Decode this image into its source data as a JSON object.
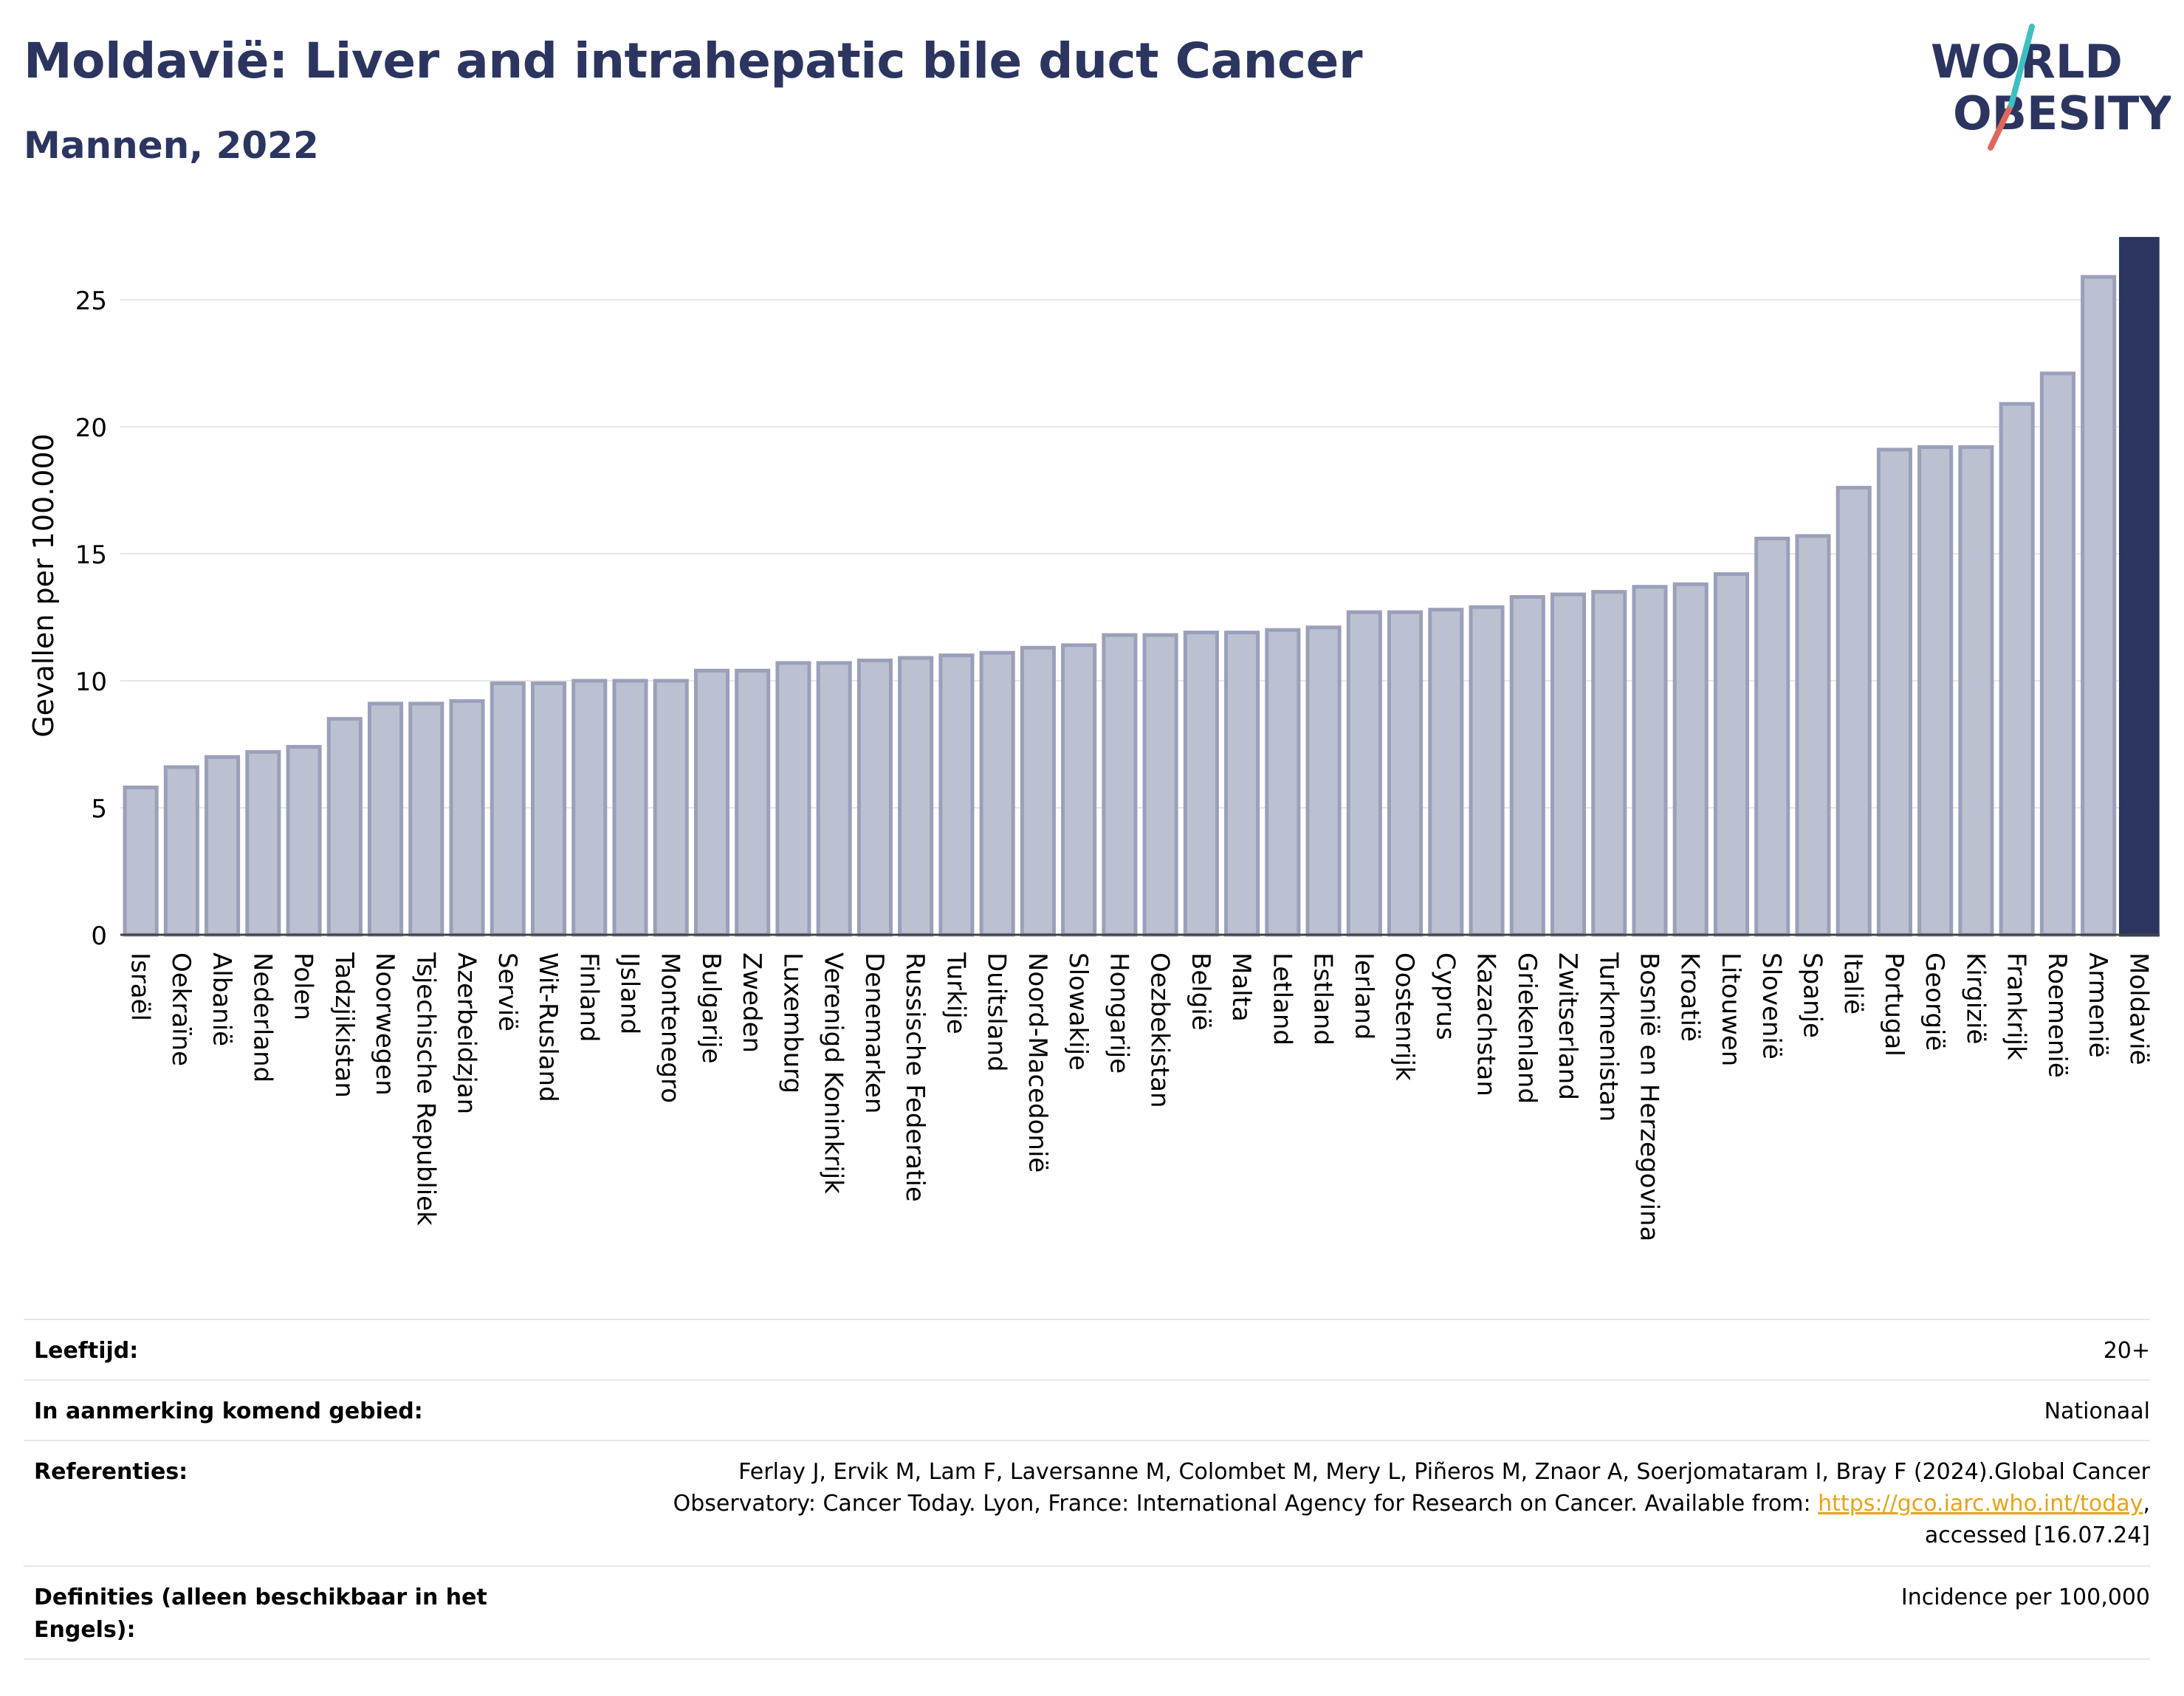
{
  "title": "Moldavië: Liver and intrahepatic bile duct Cancer",
  "subtitle": "Mannen, 2022",
  "logo": {
    "line1": "WORLD",
    "line2": "OBESITY",
    "accent_colors": [
      "#3cc0c3",
      "#e0685a"
    ]
  },
  "colors": {
    "bar": "#bcc1d1",
    "bar_stroke": "#9aa0ba",
    "highlight": "#2b3560",
    "title": "#2b3560",
    "grid": "#e6e6e6"
  },
  "chart_data": {
    "type": "bar",
    "ylabel": "Gevallen per 100.000",
    "ylim": [
      0,
      27.5
    ],
    "yticks": [
      0,
      5,
      10,
      15,
      20,
      25
    ],
    "grid": true,
    "highlight": "Moldavië",
    "categories": [
      "Israël",
      "Oekraïne",
      "Albanië",
      "Nederland",
      "Polen",
      "Tadzjikistan",
      "Noorwegen",
      "Tsjechische Republiek",
      "Azerbeidzjan",
      "Servië",
      "Wit-Rusland",
      "Finland",
      "IJsland",
      "Montenegro",
      "Bulgarije",
      "Zweden",
      "Luxemburg",
      "Verenigd Koninkrijk",
      "Denemarken",
      "Russische Federatie",
      "Turkije",
      "Duitsland",
      "Noord-Macedonië",
      "Slowakije",
      "Hongarije",
      "Oezbekistan",
      "België",
      "Malta",
      "Letland",
      "Estland",
      "Ierland",
      "Oostenrijk",
      "Cyprus",
      "Kazachstan",
      "Griekenland",
      "Zwitserland",
      "Turkmenistan",
      "Bosnië en Herzegovina",
      "Kroatië",
      "Litouwen",
      "Slovenië",
      "Spanje",
      "Italië",
      "Portugal",
      "Georgië",
      "Kirgizië",
      "Frankrijk",
      "Roemenië",
      "Armenië",
      "Moldavië"
    ],
    "values": [
      5.8,
      6.6,
      7.0,
      7.2,
      7.4,
      8.5,
      9.1,
      9.1,
      9.2,
      9.9,
      9.9,
      10.0,
      10.0,
      10.0,
      10.4,
      10.4,
      10.7,
      10.7,
      10.8,
      10.9,
      11.0,
      11.1,
      11.3,
      11.4,
      11.8,
      11.8,
      11.9,
      11.9,
      12.0,
      12.1,
      12.7,
      12.7,
      12.8,
      12.9,
      13.3,
      13.4,
      13.5,
      13.7,
      13.8,
      14.2,
      15.6,
      15.7,
      17.6,
      19.1,
      19.2,
      19.2,
      20.9,
      22.1,
      25.9,
      27.4
    ]
  },
  "meta": [
    {
      "label": "Leeftijd:",
      "value": "20+"
    },
    {
      "label": "In aanmerking komend gebied:",
      "value": "Nationaal"
    },
    {
      "label": "Referenties:",
      "value_line1": "Ferlay J, Ervik M, Lam F, Laversanne M, Colombet M, Mery L, Piñeros M, Znaor A, Soerjomataram I, Bray F (2024).Global Cancer",
      "value_line2_pre": "Observatory: Cancer Today. Lyon, France: International Agency for Research on Cancer. Available from: ",
      "value_link": "https://gco.iarc.who.int/today",
      "value_line2_post": ",",
      "value_line3": "accessed [16.07.24]"
    },
    {
      "label": "Definities (alleen beschikbaar in het Engels):",
      "value": "Incidence per 100,000"
    }
  ]
}
